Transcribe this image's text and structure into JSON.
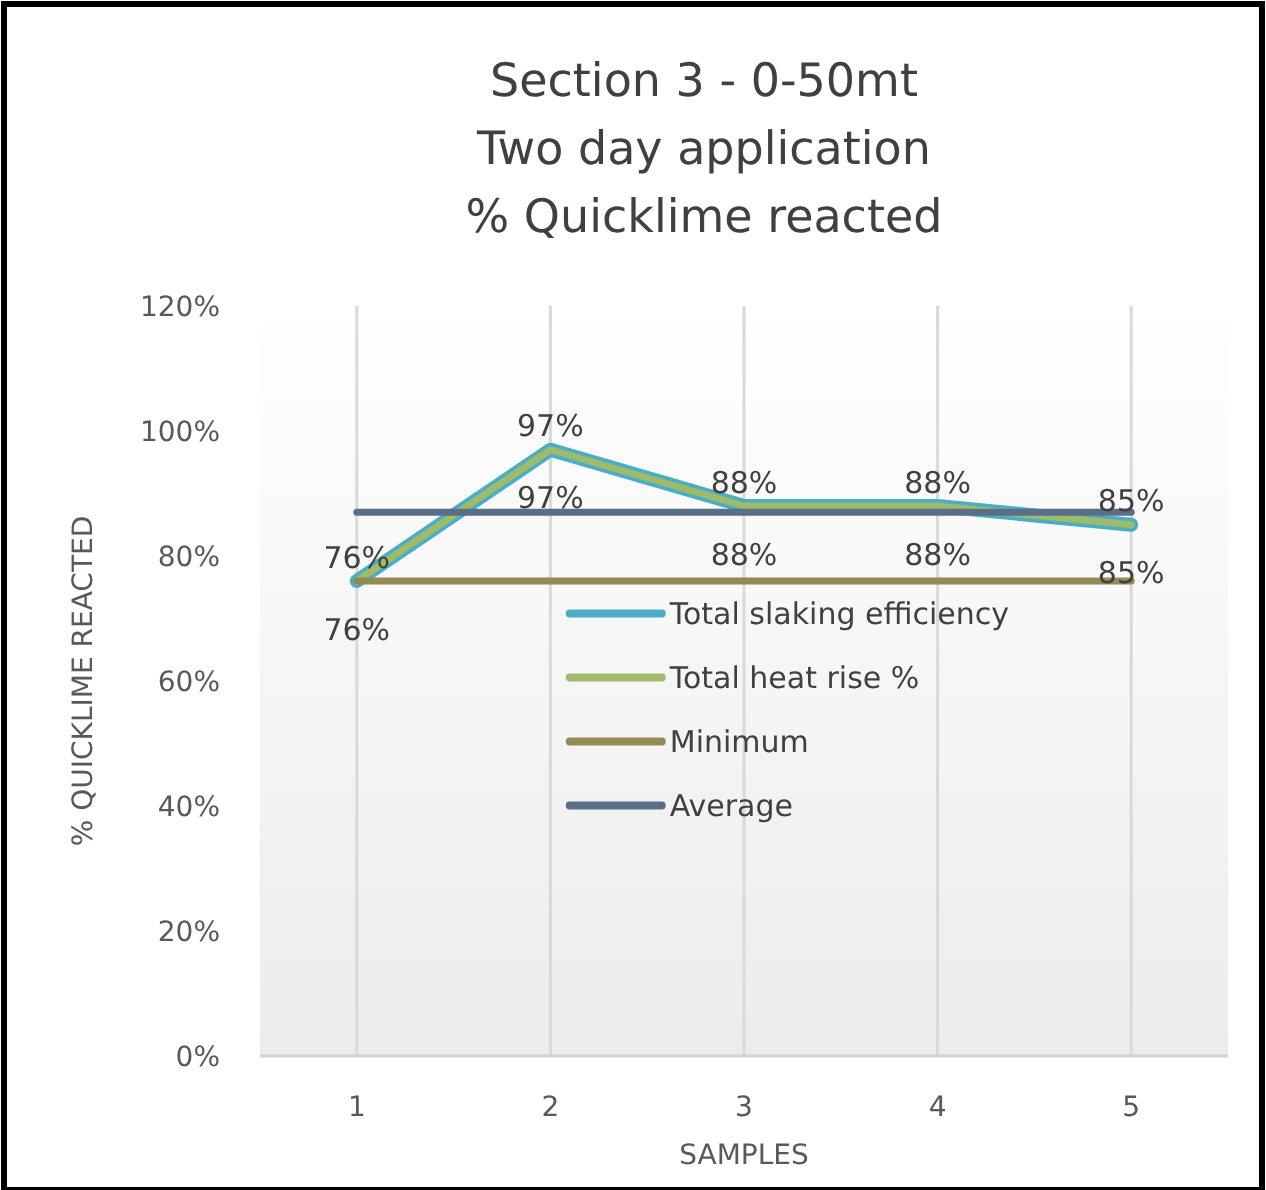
{
  "chart_data": {
    "type": "line",
    "title": "Section 3 -  0-50mt\nTwo day application\n% Quicklime reacted",
    "xlabel": "SAMPLES",
    "ylabel": "% QUICKLIME REACTED",
    "categories": [
      "1",
      "2",
      "3",
      "4",
      "5"
    ],
    "series": [
      {
        "name": "Total slaking efficiency",
        "color": "#4bacc6",
        "values": [
          76,
          97,
          88,
          88,
          85
        ],
        "value_labels": [
          "76%",
          "97%",
          "88%",
          "88%",
          "85%"
        ]
      },
      {
        "name": "Total heat rise %",
        "color": "#9dbb6a",
        "values": [
          76,
          97,
          88,
          88,
          85
        ],
        "value_labels": [
          "76%",
          "97%",
          "88%",
          "88%",
          "85%"
        ]
      },
      {
        "name": "Minimum",
        "color": "#948a54",
        "values": [
          76,
          76,
          76,
          76,
          76
        ]
      },
      {
        "name": "Average",
        "color": "#5b6e87",
        "values": [
          87,
          87,
          87,
          87,
          87
        ]
      }
    ],
    "ylim": [
      0,
      120
    ],
    "yticks": [
      {
        "value": 0,
        "label": "0%"
      },
      {
        "value": 20,
        "label": "20%"
      },
      {
        "value": 40,
        "label": "40%"
      },
      {
        "value": 60,
        "label": "60%"
      },
      {
        "value": 80,
        "label": "80%"
      },
      {
        "value": 100,
        "label": "100%"
      },
      {
        "value": 120,
        "label": "120%"
      }
    ],
    "grid": "x",
    "legend": "center",
    "marker": "none",
    "line_style": "solid"
  }
}
